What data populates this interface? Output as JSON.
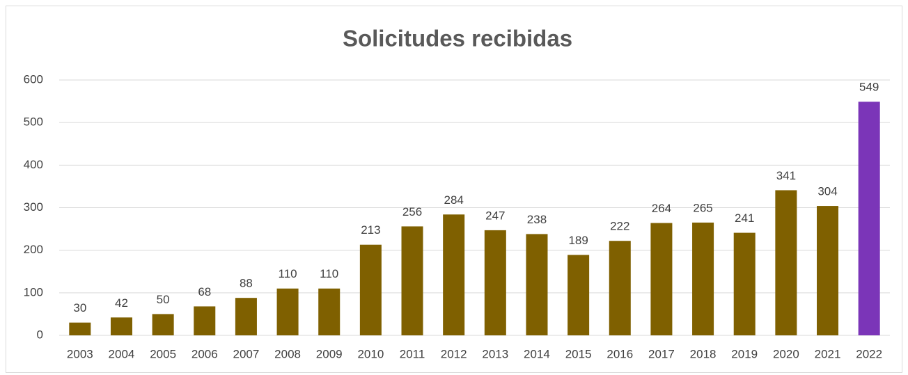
{
  "chart_data": {
    "type": "bar",
    "title": "Solicitudes recibidas",
    "categories": [
      "2003",
      "2004",
      "2005",
      "2006",
      "2007",
      "2008",
      "2009",
      "2010",
      "2011",
      "2012",
      "2013",
      "2014",
      "2015",
      "2016",
      "2017",
      "2018",
      "2019",
      "2020",
      "2021",
      "2022"
    ],
    "values": [
      30,
      42,
      50,
      68,
      88,
      110,
      110,
      213,
      256,
      284,
      247,
      238,
      189,
      222,
      264,
      265,
      241,
      341,
      304,
      549
    ],
    "colors": [
      "#7f6000",
      "#7f6000",
      "#7f6000",
      "#7f6000",
      "#7f6000",
      "#7f6000",
      "#7f6000",
      "#7f6000",
      "#7f6000",
      "#7f6000",
      "#7f6000",
      "#7f6000",
      "#7f6000",
      "#7f6000",
      "#7f6000",
      "#7f6000",
      "#7f6000",
      "#7f6000",
      "#7f6000",
      "#7b35b8"
    ],
    "ylim": [
      0,
      600
    ],
    "yticks": [
      0,
      100,
      200,
      300,
      400,
      500,
      600
    ],
    "grid": true
  }
}
